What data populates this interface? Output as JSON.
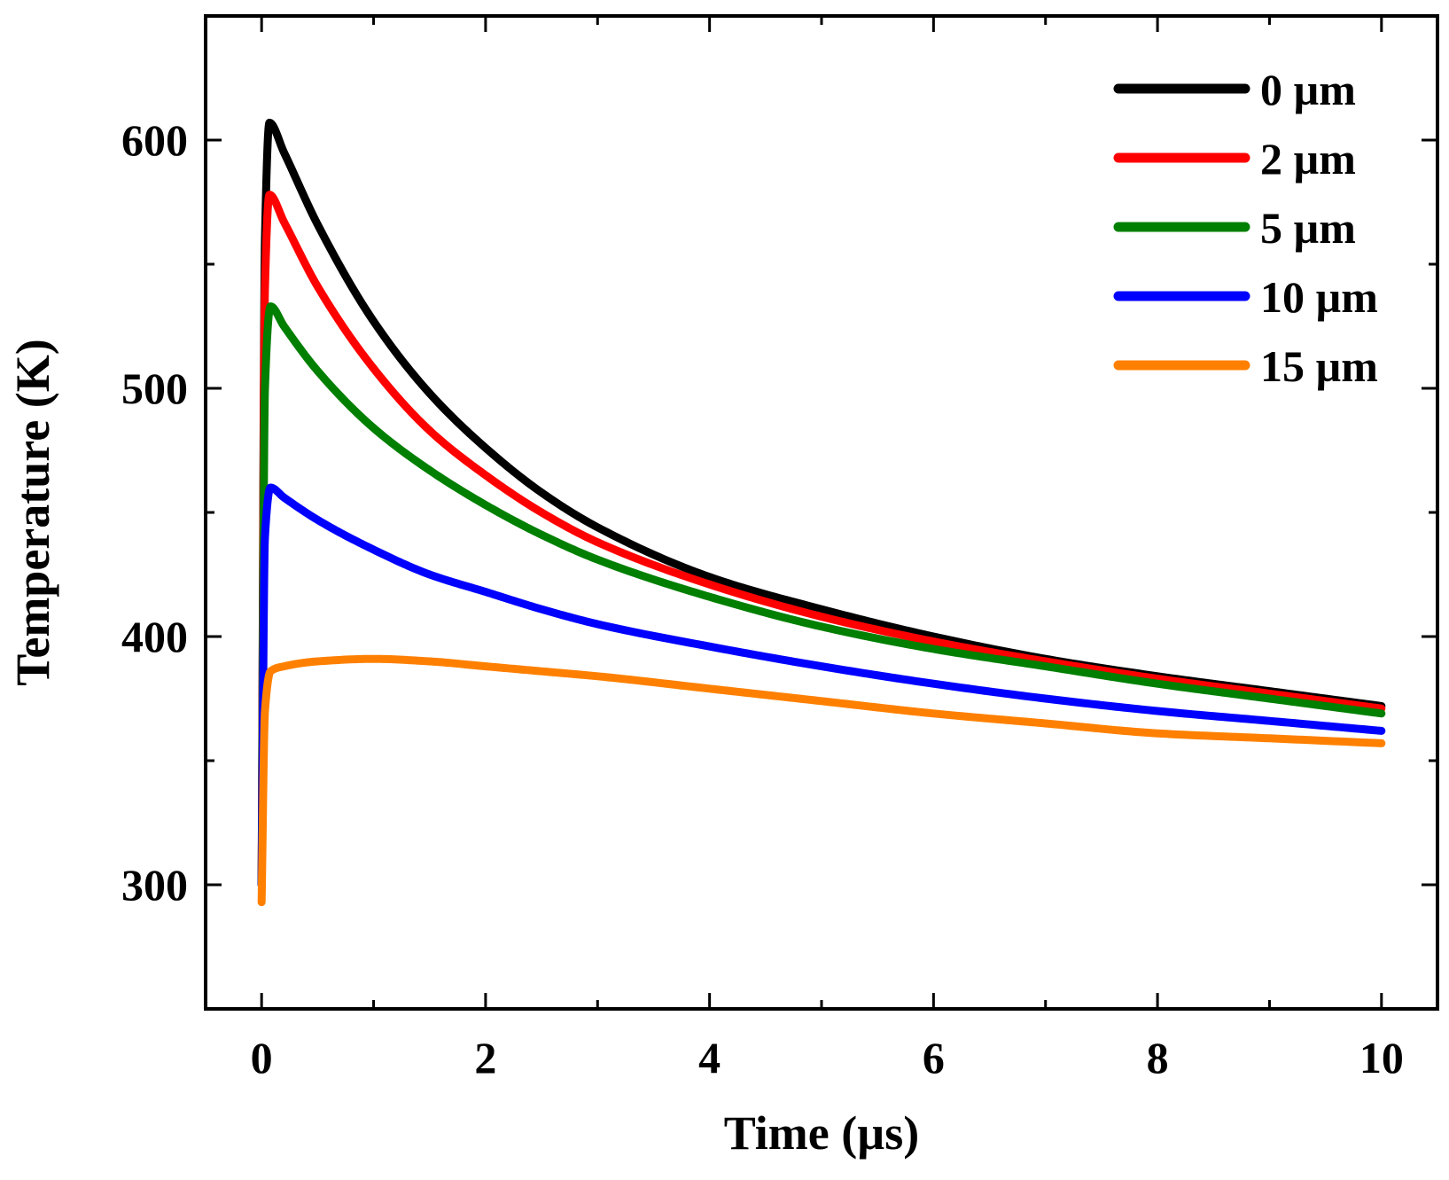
{
  "chart_data": {
    "type": "line",
    "title": "",
    "xlabel": "Time (µs)",
    "ylabel": "Temperature (K)",
    "xlim": [
      -0.5,
      10.5
    ],
    "ylim": [
      250,
      650
    ],
    "xticks": [
      0,
      2,
      4,
      6,
      8,
      10
    ],
    "xtick_labels": [
      "0",
      "2",
      "4",
      "6",
      "8",
      "10"
    ],
    "yticks": [
      300,
      400,
      500,
      600
    ],
    "ytick_labels": [
      "300",
      "400",
      "500",
      "600"
    ],
    "x_minor_step": 1,
    "y_minor_step": 50,
    "legend_position": "top-right",
    "series": [
      {
        "name": "0 µm",
        "color": "#000000",
        "x": [
          0,
          0.03,
          0.07,
          0.2,
          0.5,
          1,
          1.5,
          2,
          2.5,
          3,
          4,
          5,
          6,
          7,
          8,
          9,
          10
        ],
        "values": [
          300,
          560,
          607,
          595,
          566,
          527,
          498,
          476,
          458,
          444,
          424,
          411,
          400,
          391,
          384,
          378,
          372
        ]
      },
      {
        "name": "2 µm",
        "color": "#ff0000",
        "x": [
          0,
          0.03,
          0.07,
          0.2,
          0.5,
          1,
          1.5,
          2,
          2.5,
          3,
          4,
          5,
          6,
          7,
          8,
          9,
          10
        ],
        "values": [
          300,
          540,
          578,
          567,
          541,
          508,
          483,
          465,
          450,
          438,
          421,
          408,
          398,
          390,
          383,
          377,
          371
        ]
      },
      {
        "name": "5 µm",
        "color": "#007f00",
        "x": [
          0,
          0.03,
          0.08,
          0.2,
          0.5,
          1,
          1.5,
          2,
          2.5,
          3,
          4,
          5,
          6,
          7,
          8,
          9,
          10
        ],
        "values": [
          300,
          500,
          533,
          525,
          507,
          484,
          467,
          453,
          441,
          431,
          416,
          404,
          395,
          388,
          381,
          375,
          369
        ]
      },
      {
        "name": "10 µm",
        "color": "#0000ff",
        "x": [
          0,
          0.03,
          0.08,
          0.2,
          0.5,
          1,
          1.5,
          2,
          2.5,
          3,
          4,
          5,
          6,
          7,
          8,
          9,
          10
        ],
        "values": [
          300,
          440,
          460,
          456,
          447,
          435,
          425,
          418,
          411,
          405,
          396,
          388,
          381,
          375,
          370,
          366,
          362
        ]
      },
      {
        "name": "15 µm",
        "color": "#ff8000",
        "x": [
          0,
          0.03,
          0.08,
          0.2,
          0.5,
          1,
          1.5,
          2,
          2.5,
          3,
          4,
          5,
          6,
          7,
          8,
          9,
          10
        ],
        "values": [
          293,
          370,
          386,
          388,
          390,
          391,
          390,
          388,
          386,
          384,
          379,
          374,
          369,
          365,
          361,
          359,
          357
        ]
      }
    ]
  }
}
